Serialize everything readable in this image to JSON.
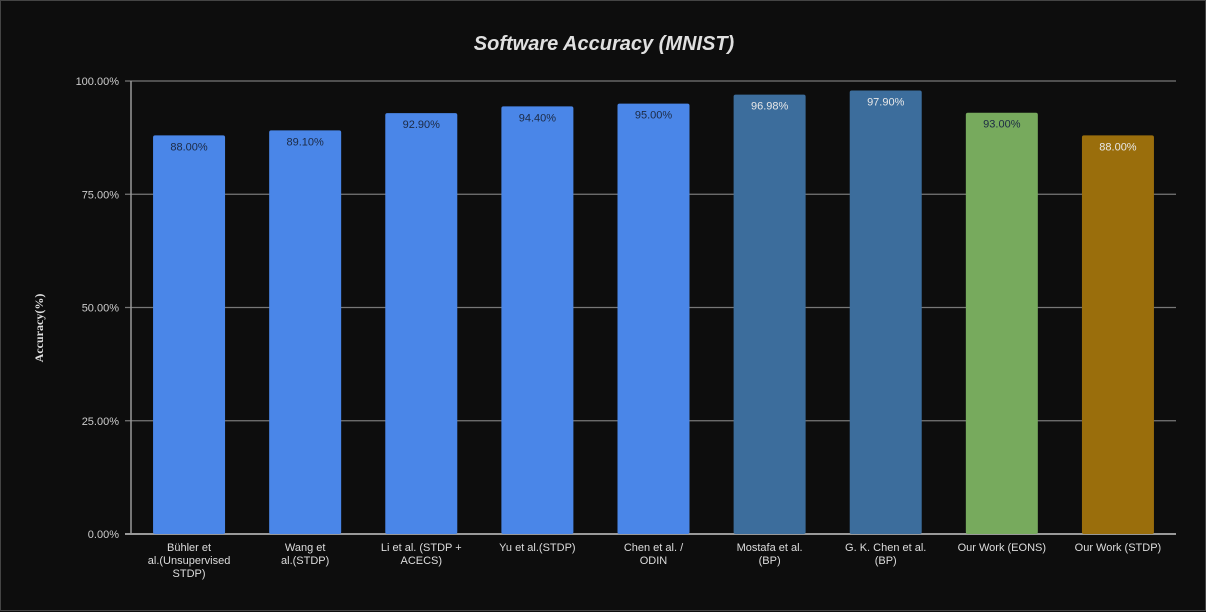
{
  "chart_data": {
    "type": "bar",
    "title": "Software Accuracy (MNIST)",
    "xlabel": "",
    "ylabel": "Accuracy(%)",
    "ylim": [
      0,
      100
    ],
    "yticks": [
      "0.00%",
      "25.00%",
      "50.00%",
      "75.00%",
      "100.00%"
    ],
    "grid": true,
    "categories": [
      [
        "Bühler et",
        "al.(Unsupervised",
        "STDP)"
      ],
      [
        "Wang et",
        "al.(STDP)"
      ],
      [
        "Li et al. (STDP +",
        "ACECS)"
      ],
      [
        "Yu et al.(STDP)"
      ],
      [
        "Chen et al. /",
        "ODIN"
      ],
      [
        "Mostafa et al.",
        "(BP)"
      ],
      [
        "G. K. Chen et al.",
        "(BP)"
      ],
      [
        "Our Work (EONS)"
      ],
      [
        "Our Work (STDP)"
      ]
    ],
    "values": [
      88.0,
      89.1,
      92.9,
      94.4,
      95.0,
      96.98,
      97.9,
      93.0,
      88.0
    ],
    "data_labels": [
      "88.00%",
      "89.10%",
      "92.90%",
      "94.40%",
      "95.00%",
      "96.98%",
      "97.90%",
      "93.00%",
      "88.00%"
    ],
    "colors": [
      "#4a86e8",
      "#4a86e8",
      "#4a86e8",
      "#4a86e8",
      "#4a86e8",
      "#3c6d9c",
      "#3c6d9c",
      "#77aa5d",
      "#9a6e0c"
    ]
  }
}
